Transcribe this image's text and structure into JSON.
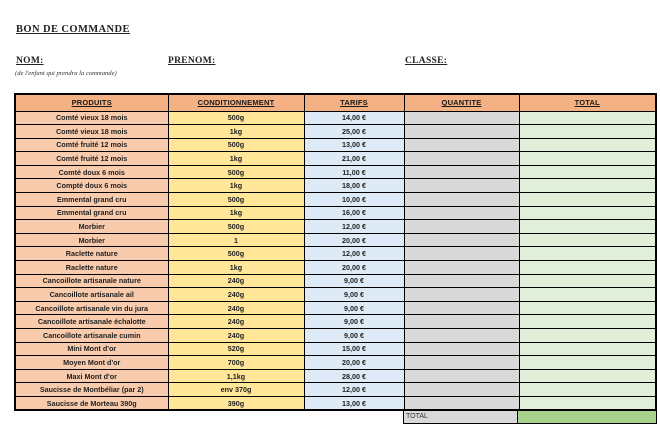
{
  "header": {
    "title": "BON DE COMMANDE",
    "nom_label": "NOM:",
    "nom_note": "(de l'enfant qui prendra la commande)",
    "prenom_label": "PRENOM:",
    "classe_label": "CLASSE:"
  },
  "table": {
    "columns": [
      "PRODUITS",
      "CONDITIONNEMENT",
      "TARIFS",
      "QUANTITE",
      "TOTAL"
    ],
    "rows": [
      {
        "produit": "Comté vieux 18 mois",
        "conditionnement": "500g",
        "tarif": "14,00 €",
        "quantite": "",
        "total": ""
      },
      {
        "produit": "Comté vieux 18 mois",
        "conditionnement": "1kg",
        "tarif": "25,00 €",
        "quantite": "",
        "total": ""
      },
      {
        "produit": "Comté fruité 12 mois",
        "conditionnement": "500g",
        "tarif": "13,00 €",
        "quantite": "",
        "total": ""
      },
      {
        "produit": "Comté fruité 12 mois",
        "conditionnement": "1kg",
        "tarif": "21,00 €",
        "quantite": "",
        "total": ""
      },
      {
        "produit": "Comté doux 6 mois",
        "conditionnement": "500g",
        "tarif": "11,00 €",
        "quantite": "",
        "total": ""
      },
      {
        "produit": "Compté doux 6 mois",
        "conditionnement": "1kg",
        "tarif": "18,00 €",
        "quantite": "",
        "total": ""
      },
      {
        "produit": "Emmental grand cru",
        "conditionnement": "500g",
        "tarif": "10,00 €",
        "quantite": "",
        "total": ""
      },
      {
        "produit": "Emmental grand cru",
        "conditionnement": "1kg",
        "tarif": "16,00 €",
        "quantite": "",
        "total": ""
      },
      {
        "produit": "Morbier",
        "conditionnement": "500g",
        "tarif": "12,00 €",
        "quantite": "",
        "total": ""
      },
      {
        "produit": "Morbier",
        "conditionnement": "1",
        "tarif": "20,00 €",
        "quantite": "",
        "total": ""
      },
      {
        "produit": "Raclette nature",
        "conditionnement": "500g",
        "tarif": "12,00 €",
        "quantite": "",
        "total": ""
      },
      {
        "produit": "Raclette nature",
        "conditionnement": "1kg",
        "tarif": "20,00 €",
        "quantite": "",
        "total": ""
      },
      {
        "produit": "Cancoillote artisanale nature",
        "conditionnement": "240g",
        "tarif": "9,00 €",
        "quantite": "",
        "total": ""
      },
      {
        "produit": "Cancoillote artisanale ail",
        "conditionnement": "240g",
        "tarif": "9,00 €",
        "quantite": "",
        "total": ""
      },
      {
        "produit": "Cancoillote artisanale vin du jura",
        "conditionnement": "240g",
        "tarif": "9,00 €",
        "quantite": "",
        "total": ""
      },
      {
        "produit": "Cancoillote artisanale échalotte",
        "conditionnement": "240g",
        "tarif": "9,00 €",
        "quantite": "",
        "total": ""
      },
      {
        "produit": "Cancoillote artisanale cumin",
        "conditionnement": "240g",
        "tarif": "9,00 €",
        "quantite": "",
        "total": ""
      },
      {
        "produit": "Mini Mont d'or",
        "conditionnement": "520g",
        "tarif": "15,00 €",
        "quantite": "",
        "total": ""
      },
      {
        "produit": "Moyen Mont d'or",
        "conditionnement": "700g",
        "tarif": "20,00 €",
        "quantite": "",
        "total": ""
      },
      {
        "produit": "Maxi Mont d'or",
        "conditionnement": "1,1kg",
        "tarif": "28,00 €",
        "quantite": "",
        "total": ""
      },
      {
        "produit": "Saucisse de Montbéliar (par 2)",
        "conditionnement": "env 370g",
        "tarif": "12,00 €",
        "quantite": "",
        "total": ""
      },
      {
        "produit": "Saucisse de Morteau 390g",
        "conditionnement": "390g",
        "tarif": "13,00 €",
        "quantite": "",
        "total": ""
      }
    ],
    "footer": {
      "label": "TOTAL",
      "value": ""
    }
  },
  "colors": {
    "header_row": "#F4B183",
    "produits_col": "#F8CBAD",
    "conditionnement_col": "#FFE699",
    "tarifs_col": "#DEEBF7",
    "quantite_col": "#D9D9D9",
    "total_col": "#E2EFDA",
    "footer_total_cell": "#A9D18E",
    "border": "#000000"
  }
}
